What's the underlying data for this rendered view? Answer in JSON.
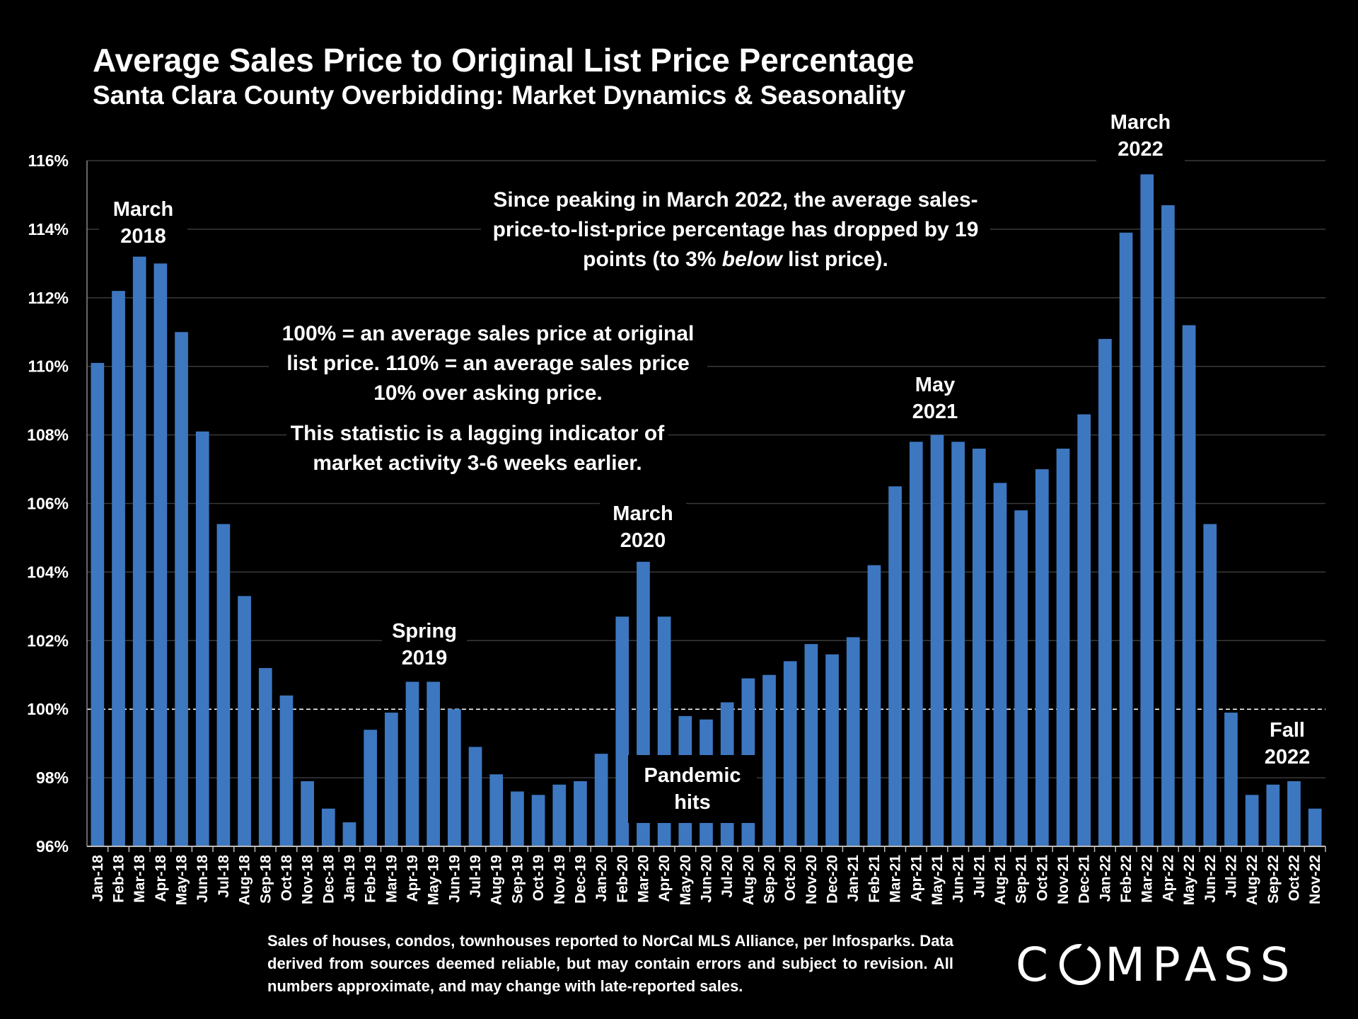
{
  "header": {
    "title": "Average Sales Price to Original List Price Percentage",
    "subtitle": "Santa Clara County Overbidding: Market Dynamics & Seasonality"
  },
  "annotations": {
    "march2018": [
      "March",
      "2018"
    ],
    "spring2019": [
      "Spring",
      "2019"
    ],
    "march2020": [
      "March",
      "2020"
    ],
    "may2021": [
      "May",
      "2021"
    ],
    "march2022": [
      "March",
      "2022"
    ],
    "fall2022": [
      "Fall",
      "2022"
    ],
    "pandemic": [
      "Pandemic",
      "hits"
    ]
  },
  "notes": {
    "peak_prefix": "Since peaking in March 2022, the average sales-price-to-list-price percentage has dropped by 19 points (to 3% ",
    "peak_emphasis": "below",
    "peak_suffix": " list price).",
    "explain": "100% = an average sales price at original list price. 110% = an average sales price 10% over asking price.",
    "lagging": "This statistic is a lagging indicator of market activity 3-6 weeks earlier."
  },
  "footer": "Sales of houses, condos, townhouses reported to NorCal MLS Alliance, per Infosparks. Data derived from sources deemed reliable, but may contain errors and subject to revision. All numbers approximate, and may change with late-reported sales.",
  "logo": {
    "left": "C",
    "right": "MPASS"
  },
  "colors": {
    "bar": "#3d77c0",
    "background": "#000000",
    "text": "#ffffff"
  },
  "chart_data": {
    "type": "bar",
    "title": "Average Sales Price to Original List Price Percentage",
    "subtitle": "Santa Clara County Overbidding: Market Dynamics & Seasonality",
    "ylim": [
      96,
      116
    ],
    "yticks": [
      "96%",
      "98%",
      "100%",
      "102%",
      "104%",
      "106%",
      "108%",
      "110%",
      "112%",
      "114%",
      "116%"
    ],
    "reference_line": 100,
    "grid": true,
    "categories": [
      "Jan-18",
      "Feb-18",
      "Mar-18",
      "Apr-18",
      "May-18",
      "Jun-18",
      "Jul-18",
      "Aug-18",
      "Sep-18",
      "Oct-18",
      "Nov-18",
      "Dec-18",
      "Jan-19",
      "Feb-19",
      "Mar-19",
      "Apr-19",
      "May-19",
      "Jun-19",
      "Jul-19",
      "Aug-19",
      "Sep-19",
      "Oct-19",
      "Nov-19",
      "Dec-19",
      "Jan-20",
      "Feb-20",
      "Mar-20",
      "Apr-20",
      "May-20",
      "Jun-20",
      "Jul-20",
      "Aug-20",
      "Sep-20",
      "Oct-20",
      "Nov-20",
      "Dec-20",
      "Jan-21",
      "Feb-21",
      "Mar-21",
      "Apr-21",
      "May-21",
      "Jun-21",
      "Jul-21",
      "Aug-21",
      "Sep-21",
      "Oct-21",
      "Nov-21",
      "Dec-21",
      "Jan-22",
      "Feb-22",
      "Mar-22",
      "Apr-22",
      "May-22",
      "Jun-22",
      "Jul-22",
      "Aug-22",
      "Sep-22",
      "Oct-22",
      "Nov-22"
    ],
    "values": [
      110.1,
      112.2,
      113.2,
      113.0,
      111.0,
      108.1,
      105.4,
      103.3,
      101.2,
      100.4,
      97.9,
      97.1,
      96.7,
      99.4,
      99.9,
      100.8,
      100.8,
      100.0,
      98.9,
      98.1,
      97.6,
      97.5,
      97.8,
      97.9,
      98.7,
      102.7,
      104.3,
      102.7,
      99.8,
      99.7,
      100.2,
      100.9,
      101.0,
      101.4,
      101.9,
      101.6,
      102.1,
      104.2,
      106.5,
      107.8,
      108.0,
      107.8,
      107.6,
      106.6,
      105.8,
      107.0,
      107.6,
      108.6,
      110.8,
      113.9,
      115.6,
      114.7,
      111.2,
      105.4,
      99.9,
      97.5,
      97.8,
      97.9,
      97.1
    ]
  }
}
